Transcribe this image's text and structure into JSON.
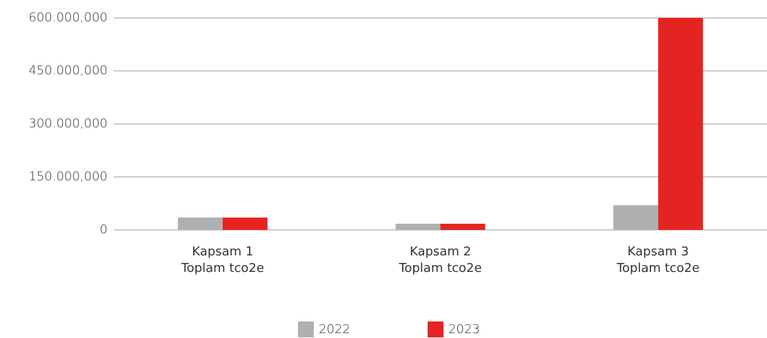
{
  "chart_data": {
    "type": "bar",
    "categories": [
      "Kapsam 1\nToplam tco2e",
      "Kapsam 2\nToplam tco2e",
      "Kapsam 3\nToplam tco2e"
    ],
    "series": [
      {
        "name": "2022",
        "color": "#b0b0b0",
        "values": [
          35000000,
          17500000,
          70000000
        ]
      },
      {
        "name": "2023",
        "color": "#e52421",
        "values": [
          35000000,
          17500000,
          600000000
        ]
      }
    ],
    "ylim": [
      0,
      600000000
    ],
    "yticks": [
      0,
      {
        "value": 150000000,
        "label": "150.000,000"
      },
      {
        "value": 300000000,
        "label": "300.000,000"
      },
      {
        "value": 450000000,
        "label": "450.000,000"
      },
      {
        "value": 600000000,
        "label": "600.000,000"
      }
    ],
    "grid": true,
    "legend": "bottom"
  }
}
